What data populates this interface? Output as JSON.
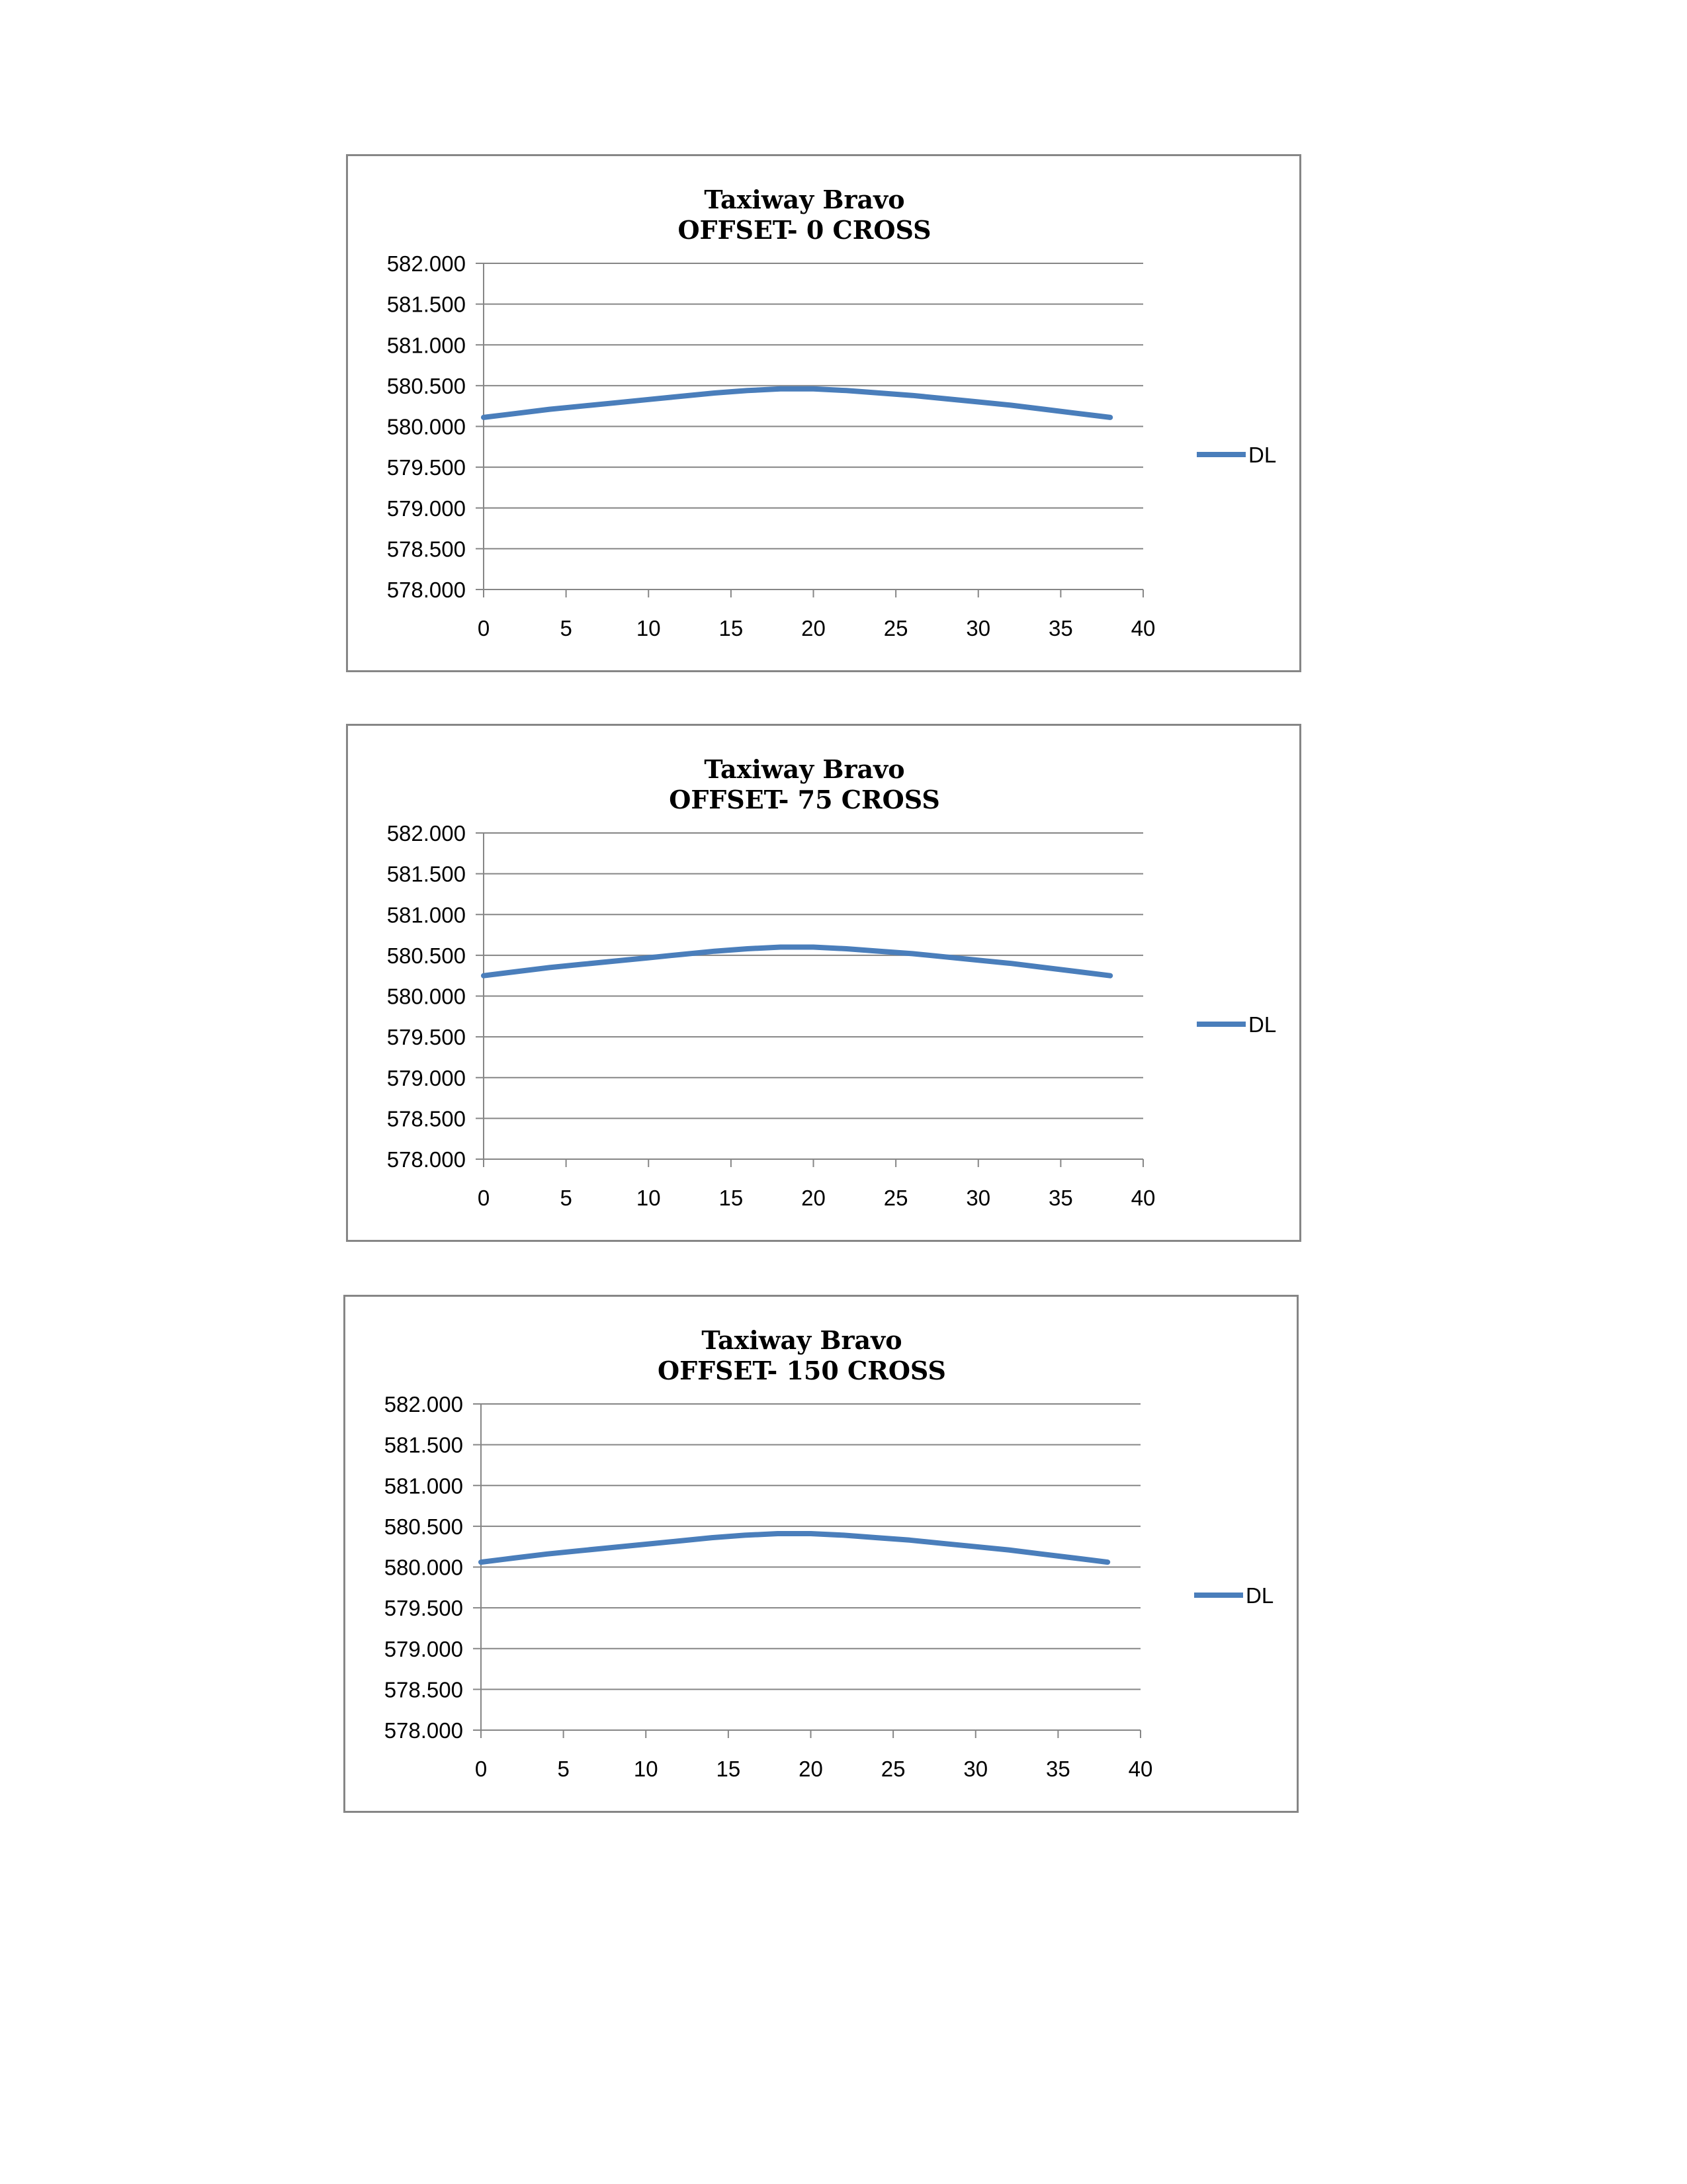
{
  "chart_data": [
    {
      "type": "line",
      "title": "Taxiway Bravo",
      "subtitle": "OFFSET- 0 CROSS",
      "xlabel": "",
      "ylabel": "",
      "xlim": [
        0,
        40
      ],
      "ylim": [
        578.0,
        582.0
      ],
      "x_ticks": [
        "0",
        "5",
        "10",
        "15",
        "20",
        "25",
        "30",
        "35",
        "40"
      ],
      "y_ticks": [
        "582.000",
        "581.500",
        "581.000",
        "580.500",
        "580.000",
        "579.500",
        "579.000",
        "578.500",
        "578.000"
      ],
      "grid": true,
      "legend_position": "right",
      "color": "#4a7ebb",
      "series": [
        {
          "name": "DL",
          "x": [
            0,
            2,
            4,
            6,
            8,
            10,
            12,
            14,
            16,
            18,
            20,
            22,
            24,
            26,
            28,
            30,
            32,
            34,
            36,
            38
          ],
          "y": [
            580.11,
            580.16,
            580.21,
            580.25,
            580.29,
            580.33,
            580.37,
            580.41,
            580.44,
            580.46,
            580.46,
            580.44,
            580.41,
            580.38,
            580.34,
            580.3,
            580.26,
            580.21,
            580.16,
            580.11
          ]
        }
      ]
    },
    {
      "type": "line",
      "title": "Taxiway Bravo",
      "subtitle": "OFFSET- 75 CROSS",
      "xlabel": "",
      "ylabel": "",
      "xlim": [
        0,
        40
      ],
      "ylim": [
        578.0,
        582.0
      ],
      "x_ticks": [
        "0",
        "5",
        "10",
        "15",
        "20",
        "25",
        "30",
        "35",
        "40"
      ],
      "y_ticks": [
        "582.000",
        "581.500",
        "581.000",
        "580.500",
        "580.000",
        "579.500",
        "579.000",
        "578.500",
        "578.000"
      ],
      "grid": true,
      "legend_position": "right",
      "color": "#4a7ebb",
      "series": [
        {
          "name": "DL",
          "x": [
            0,
            2,
            4,
            6,
            8,
            10,
            12,
            14,
            16,
            18,
            20,
            22,
            24,
            26,
            28,
            30,
            32,
            34,
            36,
            38
          ],
          "y": [
            580.25,
            580.3,
            580.35,
            580.39,
            580.43,
            580.47,
            580.51,
            580.55,
            580.58,
            580.6,
            580.6,
            580.58,
            580.55,
            580.52,
            580.48,
            580.44,
            580.4,
            580.35,
            580.3,
            580.25
          ]
        }
      ]
    },
    {
      "type": "line",
      "title": "Taxiway Bravo",
      "subtitle": "OFFSET- 150 CROSS",
      "xlabel": "",
      "ylabel": "",
      "xlim": [
        0,
        40
      ],
      "ylim": [
        578.0,
        582.0
      ],
      "x_ticks": [
        "0",
        "5",
        "10",
        "15",
        "20",
        "25",
        "30",
        "35",
        "40"
      ],
      "y_ticks": [
        "582.000",
        "581.500",
        "581.000",
        "580.500",
        "580.000",
        "579.500",
        "579.000",
        "578.500",
        "578.000"
      ],
      "grid": true,
      "legend_position": "right",
      "color": "#4a7ebb",
      "series": [
        {
          "name": "DL",
          "x": [
            0,
            2,
            4,
            6,
            8,
            10,
            12,
            14,
            16,
            18,
            20,
            22,
            24,
            26,
            28,
            30,
            32,
            34,
            36,
            38
          ],
          "y": [
            580.06,
            580.11,
            580.16,
            580.2,
            580.24,
            580.28,
            580.32,
            580.36,
            580.39,
            580.41,
            580.41,
            580.39,
            580.36,
            580.33,
            580.29,
            580.25,
            580.21,
            580.16,
            580.11,
            580.06
          ]
        }
      ]
    }
  ]
}
